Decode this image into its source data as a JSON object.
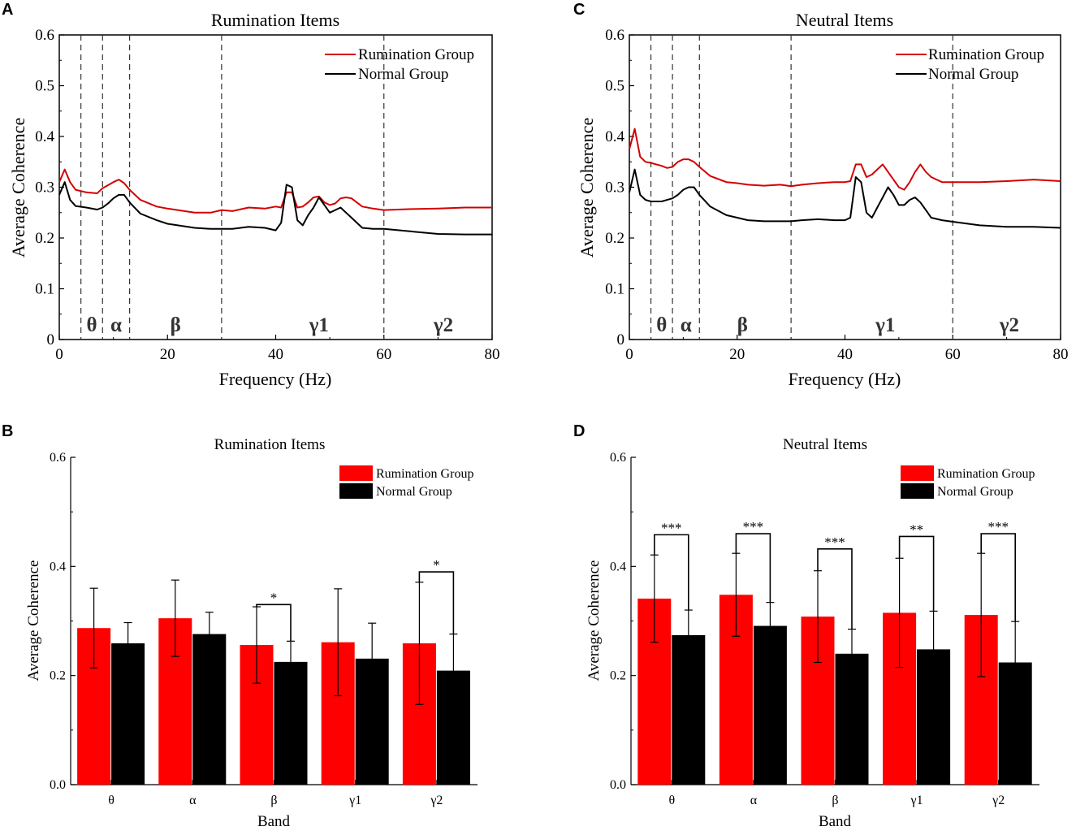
{
  "colors": {
    "rumination": "#d40000",
    "normal": "#000000",
    "axis": "#000000",
    "bar_red": "#ff0000"
  },
  "chart_data": [
    {
      "id": "A",
      "type": "line",
      "panel": "A",
      "title": "Rumination Items",
      "xlabel": "Frequency (Hz)",
      "ylabel": "Average Coherence",
      "xlim": [
        0,
        80
      ],
      "ylim": [
        0,
        0.6
      ],
      "x_ticks": [
        "0",
        "20",
        "40",
        "60",
        "80"
      ],
      "y_ticks": [
        "0",
        "0.1",
        "0.2",
        "0.3",
        "0.4",
        "0.5",
        "0.6"
      ],
      "band_boundaries": [
        4,
        8,
        13,
        30,
        60
      ],
      "band_labels": [
        {
          "text": "θ",
          "x": 6
        },
        {
          "text": "α",
          "x": 10.5
        },
        {
          "text": "β",
          "x": 21.5
        },
        {
          "text": "γ1",
          "x": 48
        },
        {
          "text": "γ2",
          "x": 71
        }
      ],
      "legend": [
        "Rumination Group",
        "Normal Group"
      ],
      "series": [
        {
          "name": "Rumination Group",
          "x": [
            0,
            1,
            2,
            3,
            5,
            7,
            8,
            9,
            10,
            11,
            12,
            13,
            15,
            18,
            20,
            25,
            28,
            30,
            32,
            35,
            38,
            40,
            41,
            42,
            43,
            44,
            45,
            46,
            47,
            48,
            49,
            50,
            51,
            52,
            53,
            54,
            56,
            58,
            60,
            65,
            70,
            75,
            80
          ],
          "y": [
            0.31,
            0.335,
            0.31,
            0.295,
            0.29,
            0.288,
            0.298,
            0.304,
            0.31,
            0.315,
            0.308,
            0.295,
            0.275,
            0.262,
            0.258,
            0.25,
            0.25,
            0.255,
            0.253,
            0.26,
            0.258,
            0.262,
            0.26,
            0.29,
            0.29,
            0.26,
            0.262,
            0.27,
            0.28,
            0.282,
            0.27,
            0.265,
            0.268,
            0.278,
            0.28,
            0.278,
            0.262,
            0.258,
            0.255,
            0.257,
            0.258,
            0.26,
            0.26
          ]
        },
        {
          "name": "Normal Group",
          "x": [
            0,
            1,
            2,
            3,
            5,
            7,
            8,
            9,
            10,
            11,
            12,
            13,
            15,
            18,
            20,
            25,
            28,
            30,
            32,
            35,
            38,
            40,
            41,
            42,
            43,
            44,
            45,
            46,
            47,
            48,
            49,
            50,
            51,
            52,
            53,
            54,
            56,
            58,
            60,
            65,
            70,
            75,
            80
          ],
          "y": [
            0.285,
            0.31,
            0.275,
            0.263,
            0.26,
            0.256,
            0.26,
            0.268,
            0.278,
            0.285,
            0.285,
            0.27,
            0.248,
            0.235,
            0.228,
            0.22,
            0.218,
            0.218,
            0.218,
            0.222,
            0.22,
            0.215,
            0.23,
            0.305,
            0.3,
            0.235,
            0.225,
            0.245,
            0.26,
            0.28,
            0.265,
            0.25,
            0.255,
            0.26,
            0.25,
            0.24,
            0.22,
            0.218,
            0.218,
            0.213,
            0.208,
            0.207,
            0.207
          ]
        }
      ]
    },
    {
      "id": "C",
      "type": "line",
      "panel": "C",
      "title": "Neutral Items",
      "xlabel": "Frequency (Hz)",
      "ylabel": "Average Coherence",
      "xlim": [
        0,
        80
      ],
      "ylim": [
        0,
        0.6
      ],
      "x_ticks": [
        "0",
        "20",
        "40",
        "60",
        "80"
      ],
      "y_ticks": [
        "0",
        "0.1",
        "0.2",
        "0.3",
        "0.4",
        "0.5",
        "0.6"
      ],
      "band_boundaries": [
        4,
        8,
        13,
        30,
        60
      ],
      "band_labels": [
        {
          "text": "θ",
          "x": 6
        },
        {
          "text": "α",
          "x": 10.5
        },
        {
          "text": "β",
          "x": 21
        },
        {
          "text": "γ1",
          "x": 47.5
        },
        {
          "text": "γ2",
          "x": 70.5
        }
      ],
      "legend": [
        "Rumination Group",
        "Normal Group"
      ],
      "series": [
        {
          "name": "Rumination Group",
          "x": [
            0,
            1,
            2,
            3,
            4,
            5,
            6,
            7,
            8,
            9,
            10,
            11,
            12,
            13,
            15,
            18,
            20,
            22,
            25,
            28,
            30,
            32,
            35,
            38,
            40,
            41,
            42,
            43,
            44,
            45,
            46,
            47,
            48,
            49,
            50,
            51,
            52,
            53,
            54,
            55,
            56,
            58,
            60,
            65,
            70,
            75,
            80
          ],
          "y": [
            0.375,
            0.415,
            0.36,
            0.35,
            0.348,
            0.345,
            0.342,
            0.338,
            0.34,
            0.35,
            0.355,
            0.355,
            0.35,
            0.34,
            0.322,
            0.31,
            0.308,
            0.305,
            0.303,
            0.305,
            0.302,
            0.305,
            0.308,
            0.31,
            0.31,
            0.312,
            0.345,
            0.345,
            0.32,
            0.325,
            0.335,
            0.345,
            0.33,
            0.315,
            0.3,
            0.295,
            0.31,
            0.33,
            0.345,
            0.33,
            0.32,
            0.31,
            0.31,
            0.31,
            0.312,
            0.315,
            0.312
          ]
        },
        {
          "name": "Normal Group",
          "x": [
            0,
            1,
            2,
            3,
            4,
            5,
            6,
            7,
            8,
            9,
            10,
            11,
            12,
            13,
            15,
            18,
            20,
            22,
            25,
            28,
            30,
            32,
            35,
            38,
            40,
            41,
            42,
            43,
            44,
            45,
            46,
            47,
            48,
            49,
            50,
            51,
            52,
            53,
            54,
            55,
            56,
            58,
            60,
            65,
            70,
            75,
            80
          ],
          "y": [
            0.29,
            0.335,
            0.285,
            0.275,
            0.272,
            0.272,
            0.272,
            0.275,
            0.278,
            0.285,
            0.295,
            0.3,
            0.3,
            0.285,
            0.262,
            0.245,
            0.24,
            0.235,
            0.233,
            0.233,
            0.233,
            0.235,
            0.237,
            0.235,
            0.235,
            0.24,
            0.32,
            0.31,
            0.25,
            0.24,
            0.26,
            0.28,
            0.3,
            0.285,
            0.265,
            0.265,
            0.275,
            0.28,
            0.27,
            0.255,
            0.24,
            0.235,
            0.232,
            0.225,
            0.222,
            0.222,
            0.22
          ]
        }
      ]
    },
    {
      "id": "B",
      "type": "bar",
      "panel": "B",
      "title": "Rumination Items",
      "xlabel": "Band",
      "ylabel": "Average Coherence",
      "ylim": [
        0,
        0.6
      ],
      "y_ticks": [
        "0.0",
        "0.2",
        "0.4",
        "0.6"
      ],
      "categories": [
        "θ",
        "α",
        "β",
        "γ1",
        "γ2"
      ],
      "legend": [
        "Rumination Group",
        "Normal Group"
      ],
      "series": [
        {
          "name": "Rumination Group",
          "values": [
            0.287,
            0.305,
            0.256,
            0.261,
            0.259
          ],
          "errors": [
            0.073,
            0.07,
            0.07,
            0.098,
            0.112
          ]
        },
        {
          "name": "Normal Group",
          "values": [
            0.259,
            0.276,
            0.225,
            0.231,
            0.209
          ],
          "errors": [
            0.038,
            0.04,
            0.038,
            0.065,
            0.067
          ]
        }
      ],
      "significance": [
        {
          "category": 2,
          "label": "*",
          "y": 0.33
        },
        {
          "category": 4,
          "label": "*",
          "y": 0.39
        }
      ]
    },
    {
      "id": "D",
      "type": "bar",
      "panel": "D",
      "title": "Neutral Items",
      "xlabel": "Band",
      "ylabel": "Average Coherence",
      "ylim": [
        0,
        0.6
      ],
      "y_ticks": [
        "0.0",
        "0.2",
        "0.4",
        "0.6"
      ],
      "categories": [
        "θ",
        "α",
        "β",
        "γ1",
        "γ2"
      ],
      "legend": [
        "Rumination Group",
        "Normal Group"
      ],
      "series": [
        {
          "name": "Rumination Group",
          "values": [
            0.341,
            0.348,
            0.308,
            0.315,
            0.311
          ],
          "errors": [
            0.08,
            0.076,
            0.084,
            0.1,
            0.113
          ]
        },
        {
          "name": "Normal Group",
          "values": [
            0.274,
            0.291,
            0.24,
            0.248,
            0.224
          ],
          "errors": [
            0.046,
            0.043,
            0.045,
            0.07,
            0.075
          ]
        }
      ],
      "significance": [
        {
          "category": 0,
          "label": "***",
          "y": 0.458
        },
        {
          "category": 1,
          "label": "***",
          "y": 0.46
        },
        {
          "category": 2,
          "label": "***",
          "y": 0.432
        },
        {
          "category": 3,
          "label": "**",
          "y": 0.455
        },
        {
          "category": 4,
          "label": "***",
          "y": 0.46
        }
      ]
    }
  ]
}
